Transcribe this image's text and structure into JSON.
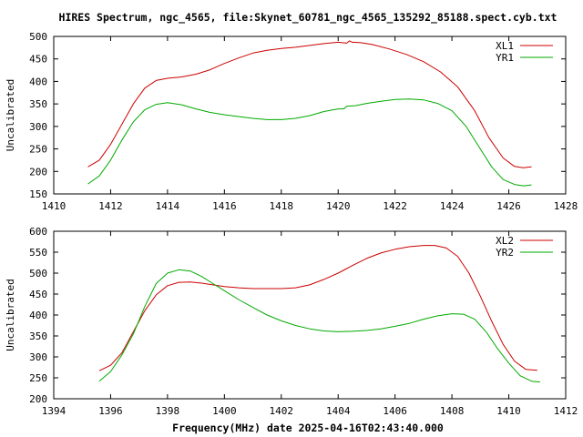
{
  "header": {
    "title": "HIRES Spectrum, ngc_4565, file:Skynet_60781_ngc_4565_135292_85188.spect.cyb.txt"
  },
  "footer": {
    "xlabel": "Frequency(MHz) date 2025-04-16T02:43:40.000"
  },
  "chart_data": [
    {
      "type": "line",
      "title": "HIRES Spectrum, ngc_4565, file:Skynet_60781_ngc_4565_135292_85188.spect.cyb.txt",
      "xlabel": "",
      "ylabel": "Uncalibrated",
      "xlim": [
        1410,
        1428
      ],
      "ylim": [
        150,
        500
      ],
      "xticks": [
        1410,
        1412,
        1414,
        1416,
        1418,
        1420,
        1422,
        1424,
        1426,
        1428
      ],
      "yticks": [
        150,
        200,
        250,
        300,
        350,
        400,
        450,
        500
      ],
      "grid": false,
      "legend": "top-right",
      "series": [
        {
          "name": "XL1",
          "color": "#cc0000",
          "x": [
            1411.2,
            1411.6,
            1412.0,
            1412.4,
            1412.8,
            1413.2,
            1413.6,
            1414.0,
            1414.5,
            1415.0,
            1415.5,
            1416.0,
            1416.5,
            1417.0,
            1417.5,
            1418.0,
            1418.5,
            1419.0,
            1419.5,
            1420.0,
            1420.3,
            1420.4,
            1420.5,
            1420.8,
            1421.2,
            1421.8,
            1422.4,
            1423.0,
            1423.6,
            1424.2,
            1424.8,
            1425.3,
            1425.8,
            1426.2,
            1426.5,
            1426.8
          ],
          "y": [
            210,
            225,
            260,
            305,
            350,
            385,
            402,
            407,
            410,
            416,
            426,
            440,
            452,
            463,
            469,
            473,
            476,
            480,
            484,
            487,
            485,
            490,
            487,
            486,
            482,
            472,
            460,
            444,
            421,
            388,
            335,
            275,
            230,
            211,
            208,
            210
          ]
        },
        {
          "name": "YR1",
          "color": "#00aa00",
          "x": [
            1411.2,
            1411.6,
            1412.0,
            1412.4,
            1412.8,
            1413.2,
            1413.6,
            1414.0,
            1414.5,
            1415.0,
            1415.5,
            1416.0,
            1416.5,
            1417.0,
            1417.5,
            1418.0,
            1418.5,
            1419.0,
            1419.5,
            1420.0,
            1420.2,
            1420.3,
            1420.6,
            1421.0,
            1421.5,
            1422.0,
            1422.5,
            1423.0,
            1423.5,
            1424.0,
            1424.5,
            1425.0,
            1425.4,
            1425.8,
            1426.2,
            1426.5,
            1426.8
          ],
          "y": [
            172,
            190,
            225,
            270,
            310,
            337,
            349,
            353,
            348,
            339,
            331,
            326,
            322,
            318,
            315,
            315,
            318,
            324,
            333,
            339,
            339,
            345,
            346,
            351,
            356,
            360,
            361,
            359,
            351,
            335,
            300,
            250,
            210,
            182,
            171,
            168,
            170
          ]
        }
      ]
    },
    {
      "type": "line",
      "title": "",
      "xlabel": "Frequency(MHz) date 2025-04-16T02:43:40.000",
      "ylabel": "Uncalibrated",
      "xlim": [
        1394,
        1412
      ],
      "ylim": [
        200,
        600
      ],
      "xticks": [
        1394,
        1396,
        1398,
        1400,
        1402,
        1404,
        1406,
        1408,
        1410,
        1412
      ],
      "yticks": [
        200,
        250,
        300,
        350,
        400,
        450,
        500,
        550,
        600
      ],
      "grid": false,
      "legend": "top-right",
      "series": [
        {
          "name": "XL2",
          "color": "#cc0000",
          "x": [
            1395.6,
            1396.0,
            1396.4,
            1396.8,
            1397.2,
            1397.6,
            1398.0,
            1398.4,
            1398.8,
            1399.2,
            1399.6,
            1400.0,
            1400.5,
            1401.0,
            1401.5,
            1402.0,
            1402.5,
            1403.0,
            1403.5,
            1404.0,
            1404.5,
            1405.0,
            1405.5,
            1406.0,
            1406.5,
            1407.0,
            1407.4,
            1407.8,
            1408.2,
            1408.6,
            1409.0,
            1409.4,
            1409.8,
            1410.2,
            1410.6,
            1411.0
          ],
          "y": [
            267,
            280,
            310,
            360,
            410,
            448,
            470,
            478,
            479,
            476,
            472,
            468,
            465,
            463,
            463,
            463,
            465,
            472,
            485,
            500,
            518,
            535,
            548,
            557,
            563,
            566,
            566,
            560,
            540,
            500,
            445,
            385,
            330,
            290,
            270,
            268
          ]
        },
        {
          "name": "YR2",
          "color": "#00aa00",
          "x": [
            1395.6,
            1396.0,
            1396.4,
            1396.8,
            1397.2,
            1397.6,
            1398.0,
            1398.4,
            1398.8,
            1399.2,
            1399.6,
            1400.0,
            1400.5,
            1401.0,
            1401.5,
            1402.0,
            1402.5,
            1403.0,
            1403.5,
            1404.0,
            1404.5,
            1405.0,
            1405.5,
            1406.0,
            1406.5,
            1407.0,
            1407.5,
            1408.0,
            1408.4,
            1408.8,
            1409.2,
            1409.6,
            1410.0,
            1410.4,
            1410.8,
            1411.1
          ],
          "y": [
            242,
            265,
            305,
            355,
            420,
            475,
            500,
            508,
            505,
            492,
            475,
            458,
            437,
            418,
            400,
            386,
            375,
            367,
            362,
            360,
            361,
            363,
            367,
            373,
            380,
            390,
            398,
            403,
            402,
            390,
            360,
            320,
            285,
            255,
            242,
            240
          ]
        }
      ]
    }
  ]
}
